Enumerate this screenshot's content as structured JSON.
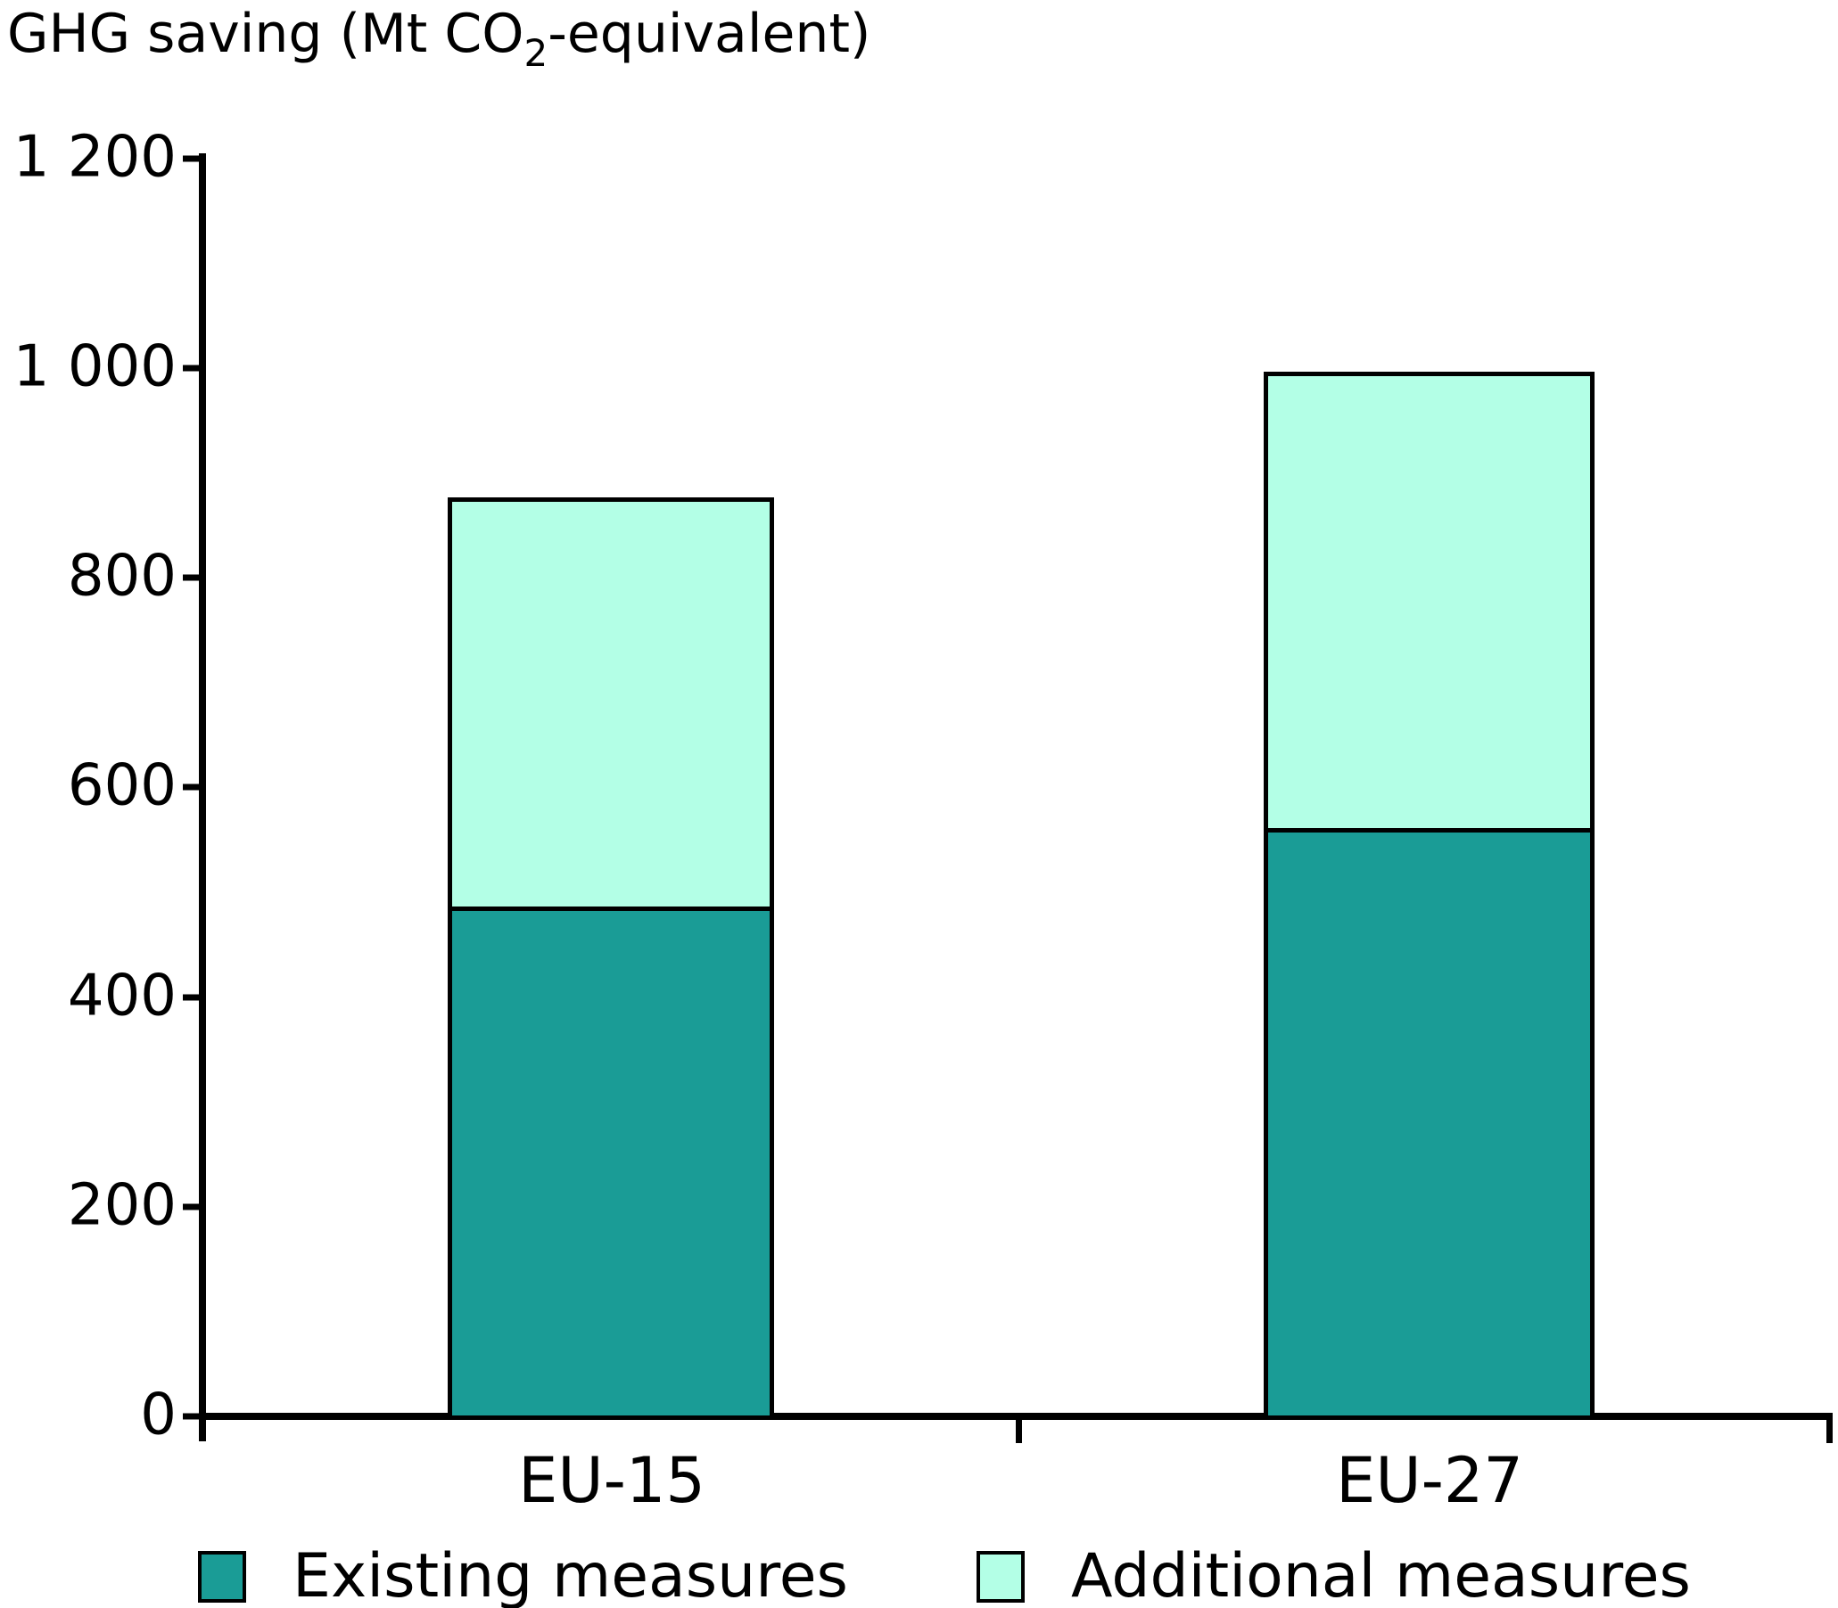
{
  "title": {
    "prefix": "GHG saving (Mt CO",
    "subscript": "2",
    "suffix": "-equivalent)"
  },
  "chart_data": {
    "type": "bar",
    "stacked": true,
    "title": "GHG saving (Mt CO2-equivalent)",
    "categories": [
      "EU-15",
      "EU-27"
    ],
    "series": [
      {
        "name": "Existing measures",
        "color": "#1A9C96",
        "values": [
          490,
          565
        ]
      },
      {
        "name": "Additional measures",
        "color": "#B3FFE6",
        "values": [
          390,
          435
        ]
      }
    ],
    "totals": [
      880,
      1000
    ],
    "xlabel": "",
    "ylabel": "GHG saving (Mt CO2-equivalent)",
    "ylim": [
      0,
      1200
    ],
    "ytick_interval": 200,
    "ytick_labels": [
      "1 200",
      "1 000",
      "800",
      "600",
      "400",
      "200",
      "0"
    ],
    "grid": false,
    "legend_position": "bottom",
    "bar_outline_color": "#000000",
    "axis_color": "#000000"
  }
}
